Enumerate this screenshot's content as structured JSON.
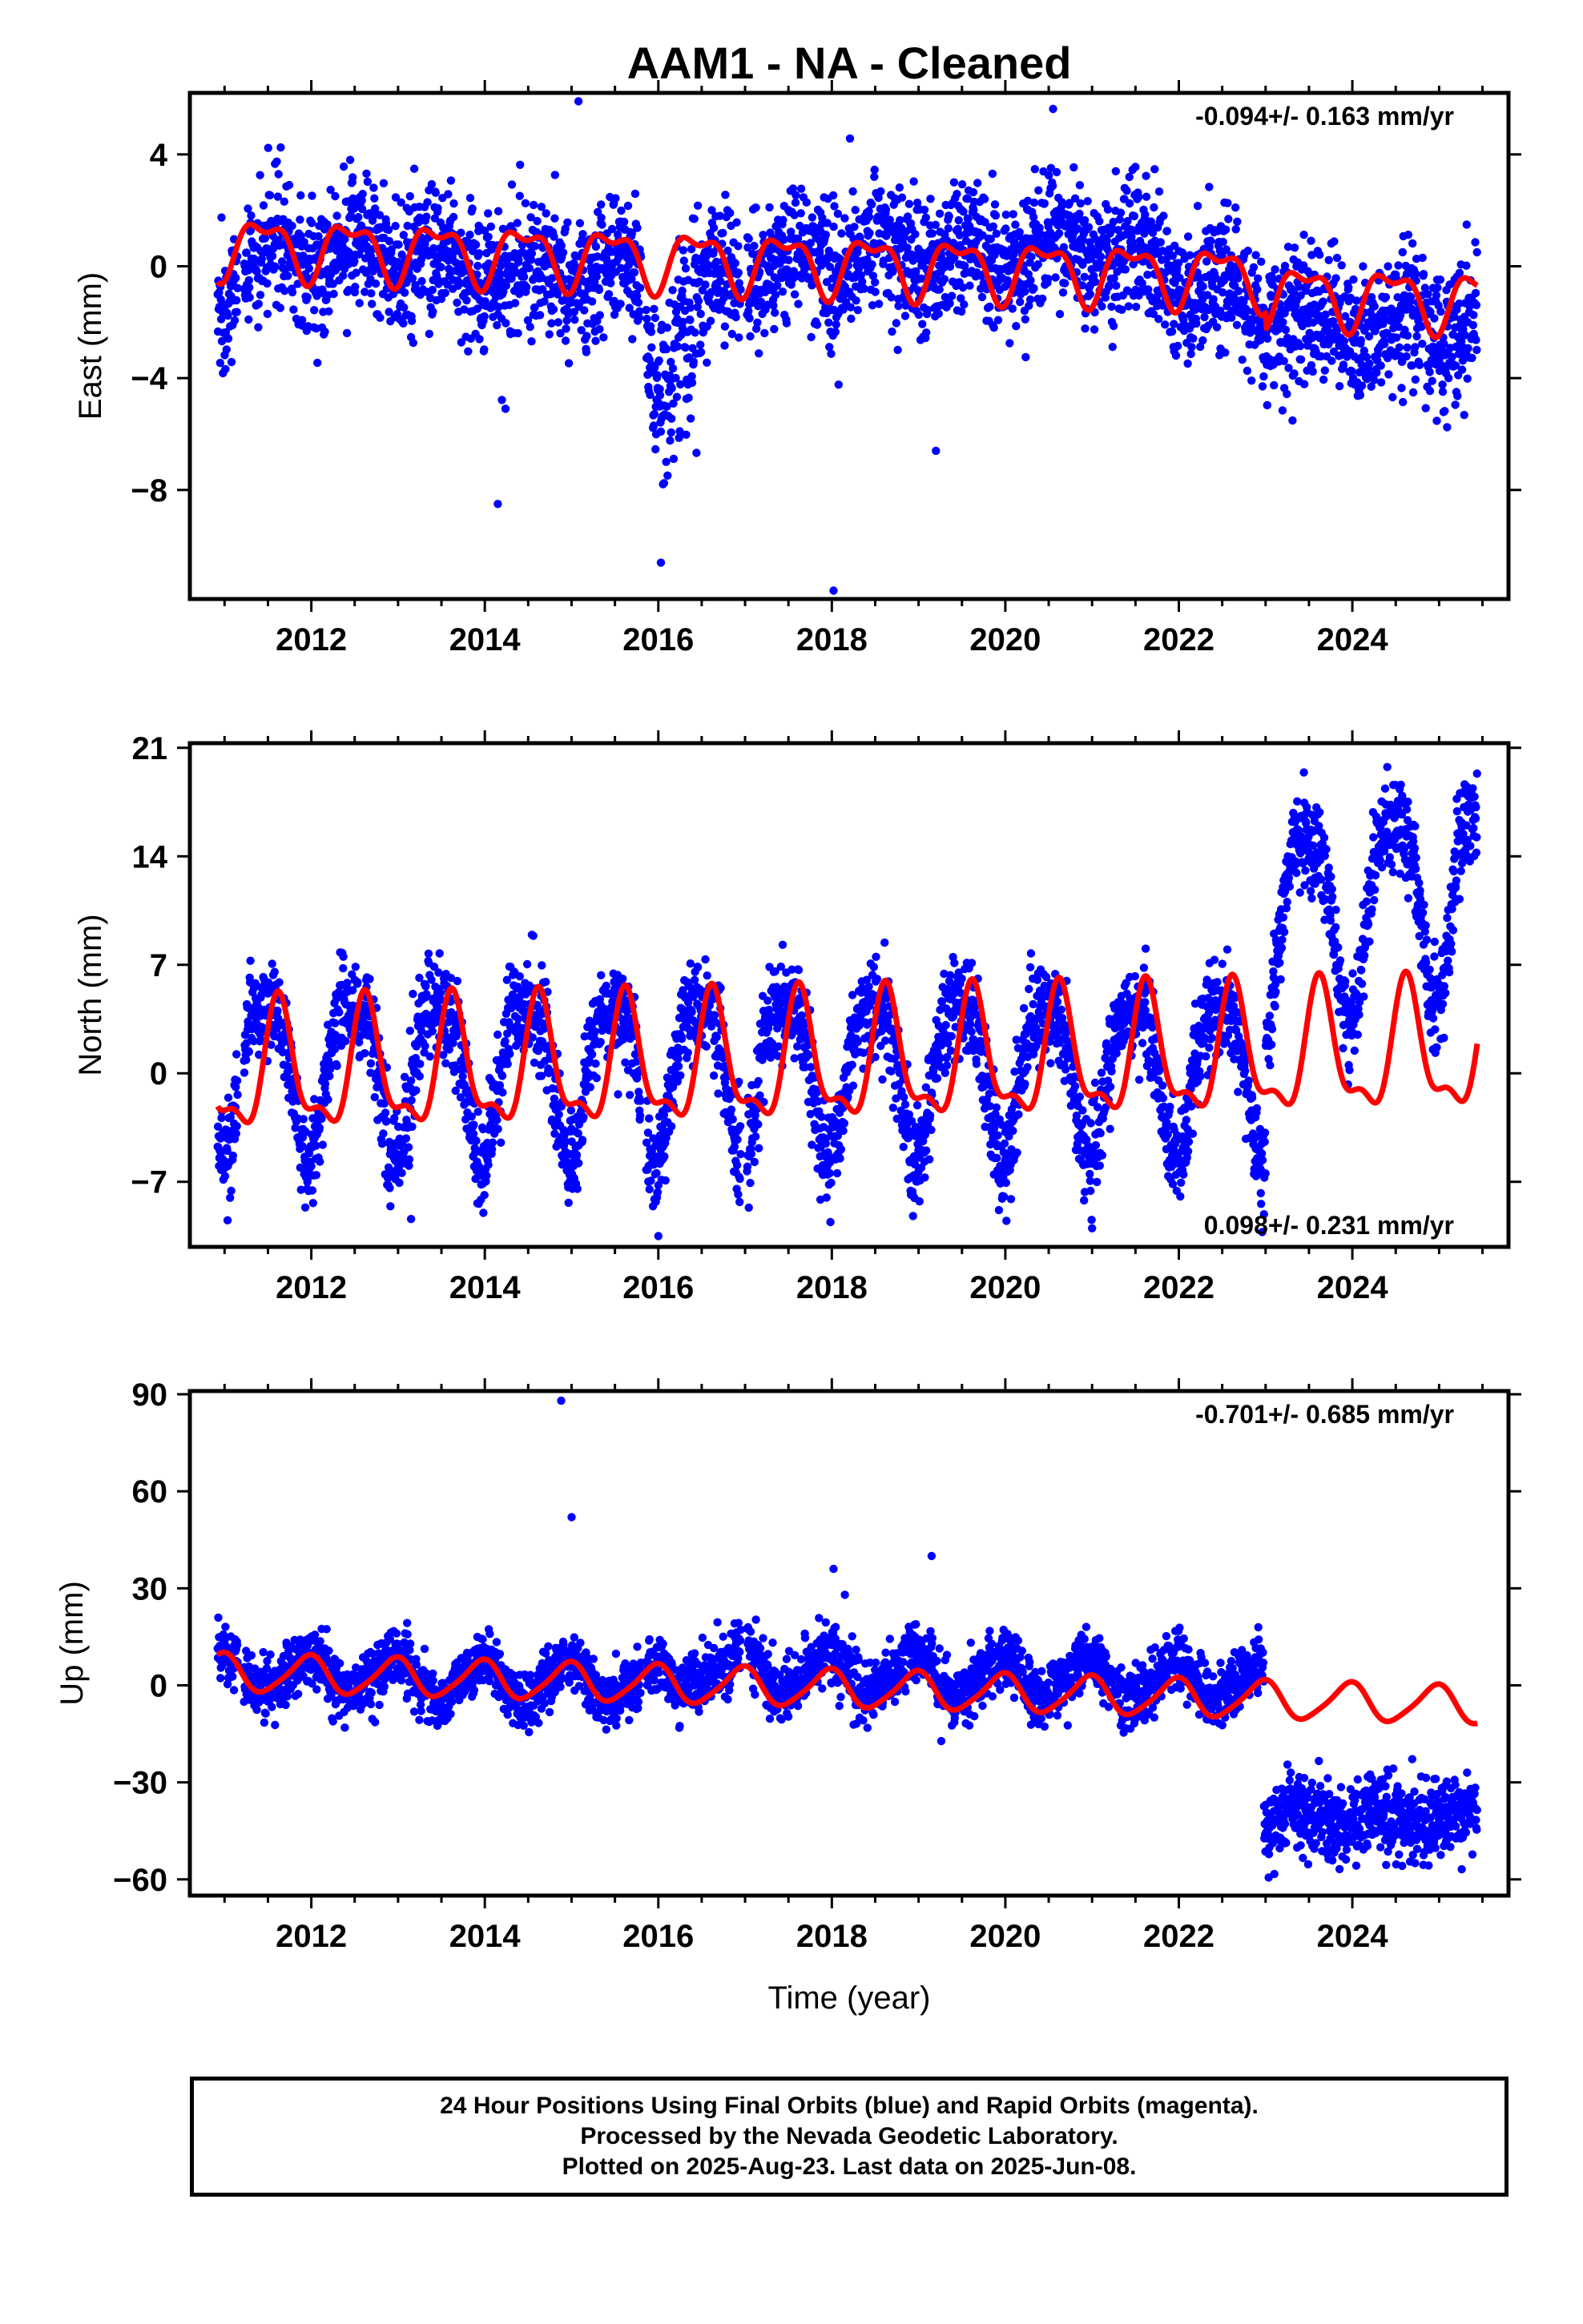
{
  "title": "AAM1  - NA - Cleaned",
  "xlabel": "Time (year)",
  "colors": {
    "points": "#0000ff",
    "model": "#ff0000",
    "axes": "#000000"
  },
  "chart_data": [
    {
      "type": "scatter",
      "component": "east",
      "ylabel": "East (mm)",
      "rate": "-0.094+/- 0.163 mm/yr",
      "rate_position": "top-right",
      "xlim": [
        2010.6,
        2025.8
      ],
      "ylim": [
        -11.9,
        6.2
      ],
      "x_ticks": [
        "2012",
        "2014",
        "2016",
        "2018",
        "2020",
        "2022",
        "2024"
      ],
      "y_ticks": [
        "4",
        "0",
        "−4",
        "−8"
      ],
      "y_tick_values": [
        4,
        0,
        -4,
        -8
      ],
      "series": [
        {
          "kind": "points",
          "data_summary": {
            "x_range": [
              2010.92,
              2025.44
            ],
            "scatter_sd_mm": 1.2,
            "outliers": [
              [
                2015.08,
                5.9
              ],
              [
                2016.03,
                -10.6
              ],
              [
                2018.02,
                -11.6
              ],
              [
                2019.2,
                -6.6
              ],
              [
                2014.15,
                -8.5
              ]
            ],
            "seg_offsets": [
              [
                2010.92,
                -1.3
              ],
              [
                2011.3,
                0.1
              ],
              [
                2012.5,
                0.6
              ],
              [
                2014.0,
                -0.3
              ],
              [
                2015.8,
                -0.2
              ],
              [
                2015.95,
                -4.0
              ],
              [
                2016.6,
                -0.6
              ],
              [
                2017.3,
                0.0
              ],
              [
                2018.2,
                0.4
              ],
              [
                2019.0,
                0.4
              ],
              [
                2020.0,
                0.5
              ],
              [
                2021.2,
                0.7
              ],
              [
                2022.9,
                -1.3
              ],
              [
                2023.4,
                -2.1
              ],
              [
                2025.44,
                -2.2
              ]
            ]
          }
        },
        {
          "kind": "line",
          "model": {
            "x_range": [
              2010.92,
              2025.44
            ],
            "t0": 2018.0,
            "offset": 0.1,
            "rate": -0.094,
            "annual": [
              0.3,
              -0.9
            ],
            "semiannual": [
              0.2,
              -0.4
            ],
            "steps": [
              [
                2023.0,
                -0.6
              ]
            ]
          }
        }
      ]
    },
    {
      "type": "scatter",
      "component": "north",
      "ylabel": "North (mm)",
      "rate": "0.098+/- 0.231 mm/yr",
      "rate_position": "bottom-right",
      "xlim": [
        2010.6,
        2025.8
      ],
      "ylim": [
        -11.2,
        21.3
      ],
      "x_ticks": [
        "2012",
        "2014",
        "2016",
        "2018",
        "2020",
        "2022",
        "2024"
      ],
      "y_ticks": [
        "21",
        "14",
        "7",
        "0",
        "−7"
      ],
      "y_tick_values": [
        21,
        14,
        7,
        0,
        -7
      ],
      "series": [
        {
          "kind": "points",
          "data_summary": {
            "x_range": [
              2010.92,
              2025.44
            ],
            "scatter_sd_mm": 1.6,
            "seasonal_amplitude_mm": 5.0,
            "post_2023_offset_mm": 9.5,
            "outliers": [
              [
                2013.15,
                -9.4
              ],
              [
                2016.0,
                -10.5
              ],
              [
                2021.0,
                -10.0
              ]
            ]
          }
        },
        {
          "kind": "line",
          "model": {
            "x_range": [
              2010.92,
              2025.44
            ],
            "t0": 2018.0,
            "offset": 0.6,
            "rate": 0.098,
            "annual": [
              -2.8,
              -2.6
            ],
            "semiannual": [
              1.5,
              0.3
            ],
            "steps": []
          }
        }
      ]
    },
    {
      "type": "scatter",
      "component": "up",
      "ylabel": "Up (mm)",
      "rate": "-0.701+/- 0.685 mm/yr",
      "rate_position": "top-right",
      "xlim": [
        2010.6,
        2025.8
      ],
      "ylim": [
        -65,
        91
      ],
      "x_ticks": [
        "2012",
        "2014",
        "2016",
        "2018",
        "2020",
        "2022",
        "2024"
      ],
      "y_ticks": [
        "90",
        "60",
        "30",
        "0",
        "−30",
        "−60"
      ],
      "y_tick_values": [
        90,
        60,
        30,
        0,
        -30,
        -60
      ],
      "series": [
        {
          "kind": "points",
          "data_summary": {
            "x_range": [
              2010.92,
              2025.44
            ],
            "scatter_sd_mm": 4.5,
            "post_2023_level_mm": -41,
            "outliers": [
              [
                2014.88,
                88
              ],
              [
                2015.0,
                52
              ],
              [
                2018.02,
                36
              ],
              [
                2019.15,
                40
              ],
              [
                2018.15,
                28
              ]
            ]
          }
        },
        {
          "kind": "line",
          "model": {
            "x_range": [
              2010.92,
              2025.44
            ],
            "t0": 2018.0,
            "offset": -1.0,
            "rate": -0.701,
            "annual": [
              -1.5,
              5.5
            ],
            "semiannual": [
              0.6,
              0.8
            ],
            "steps": []
          }
        }
      ]
    }
  ],
  "footnote": {
    "lines": [
      "24 Hour Positions Using Final Orbits (blue) and Rapid Orbits (magenta).",
      "Processed by the Nevada Geodetic Laboratory.",
      "Plotted on 2025-Aug-23. Last data on 2025-Jun-08."
    ]
  }
}
